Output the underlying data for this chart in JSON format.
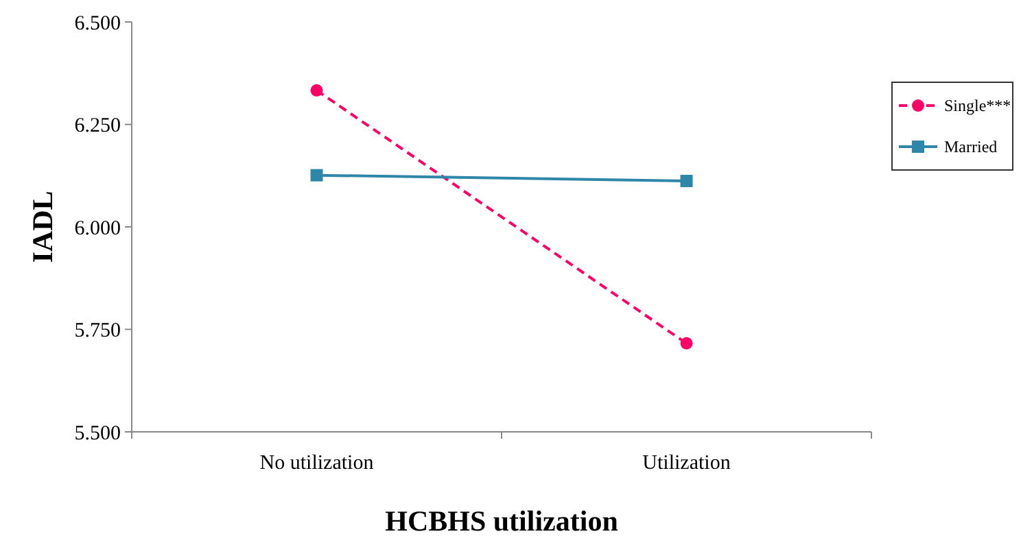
{
  "chart_data": {
    "type": "line",
    "xlabel": "HCBHS utilization",
    "ylabel": "IADL",
    "categories": [
      "No utilization",
      "Utilization"
    ],
    "ylim": [
      5.5,
      6.5
    ],
    "yticks": [
      {
        "value": 5.5,
        "label": "5.500"
      },
      {
        "value": 5.75,
        "label": "5.750"
      },
      {
        "value": 6,
        "label": "6.000"
      },
      {
        "value": 6.25,
        "label": "6.250"
      },
      {
        "value": 6.5,
        "label": "6.500"
      }
    ],
    "grid": false,
    "legend": "right",
    "series": [
      {
        "name": "Single***",
        "color": "#ff0066",
        "values": [
          6.333,
          5.716
        ],
        "marker": "circle",
        "line_style": "dashed"
      },
      {
        "name": "Married",
        "color": "#2e86a8",
        "values": [
          6.126,
          6.112
        ],
        "marker": "square",
        "line_style": "solid"
      }
    ]
  }
}
